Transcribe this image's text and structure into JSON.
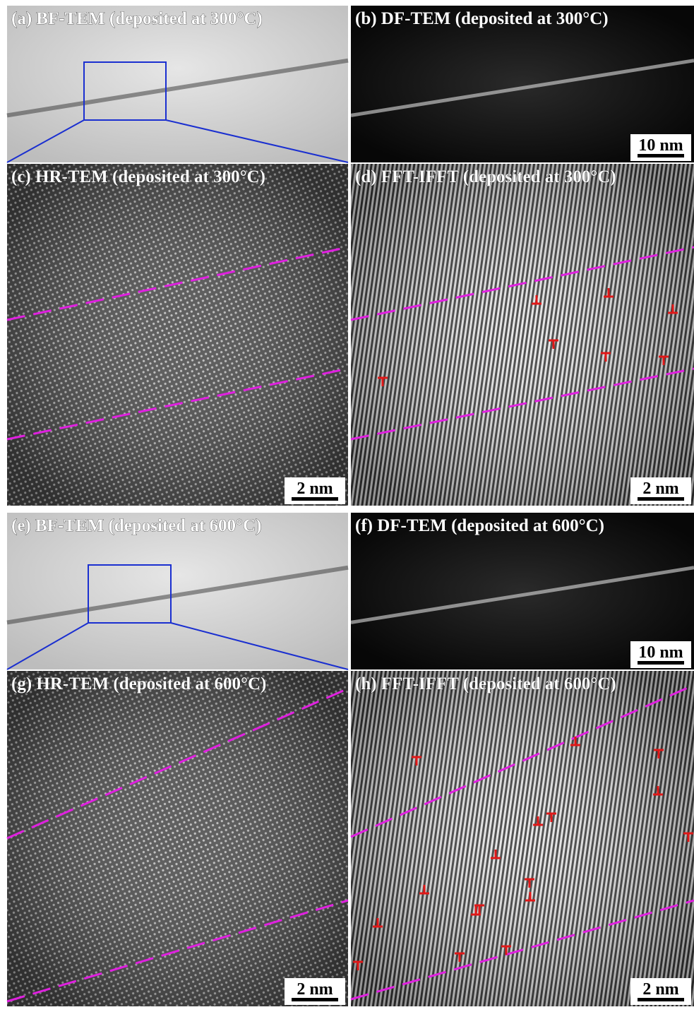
{
  "panels": [
    {
      "label": "(a) BF-TEM (deposited at 300°C)"
    },
    {
      "label": "(b) DF-TEM (deposited at 300°C)",
      "scale_bar": "10 nm"
    },
    {
      "label": "(c) HR-TEM (deposited at 300°C)",
      "scale_bar": "2 nm"
    },
    {
      "label": "(d) FFT-IFFT (deposited at 300°C)",
      "scale_bar": "2 nm"
    },
    {
      "label": "(e) BF-TEM (deposited at 600°C)"
    },
    {
      "label": "(f) DF-TEM (deposited at 600°C)",
      "scale_bar": "10 nm"
    },
    {
      "label": "(g) HR-TEM (deposited at 600°C)",
      "scale_bar": "2 nm"
    },
    {
      "label": "(h) FFT-IFFT (deposited at 600°C)",
      "scale_bar": "2 nm"
    }
  ]
}
